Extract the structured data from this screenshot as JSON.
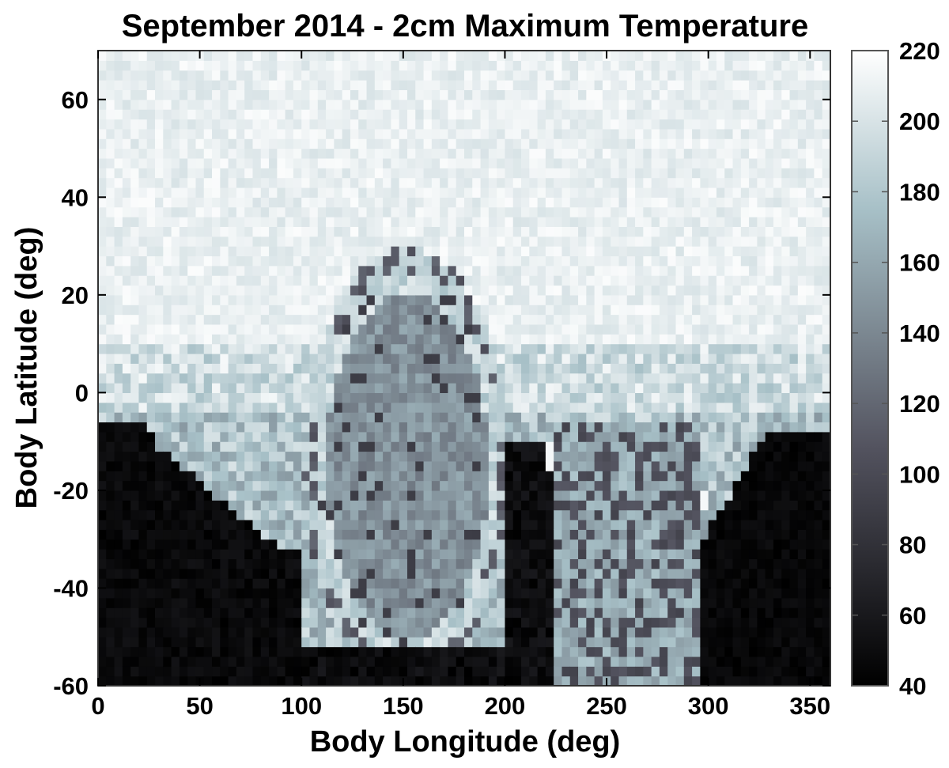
{
  "chart_data": {
    "type": "heatmap",
    "title": "September 2014 - 2cm Maximum Temperature",
    "xlabel": "Body Longitude (deg)",
    "ylabel": "Body Latitude (deg)",
    "xlim": [
      0,
      360
    ],
    "ylim": [
      -60,
      70
    ],
    "xticks": [
      0,
      50,
      100,
      150,
      200,
      250,
      300,
      350
    ],
    "yticks": [
      -60,
      -40,
      -20,
      0,
      20,
      40,
      60
    ],
    "colorbar": {
      "range": [
        40,
        220
      ],
      "ticks": [
        40,
        60,
        80,
        100,
        120,
        140,
        160,
        180,
        200,
        220
      ],
      "colormap": "bone",
      "low_color": "#000000",
      "high_color": "#ffffff"
    },
    "grid": false,
    "field_summary": {
      "approx_regions": [
        {
          "region": "northern latitudes (> ~10 deg), all longitudes",
          "value_range": [
            195,
            220
          ]
        },
        {
          "region": "central depression, lon ~110-195, lat ~-50 to 25",
          "value_range": [
            120,
            170
          ]
        },
        {
          "region": "shadowed south, lat < ~-10, lon 0-100 and 300-360",
          "value_range": [
            40,
            60
          ]
        },
        {
          "region": "southern trough, lon ~195-225, lat < ~-10",
          "value_range": [
            40,
            70
          ]
        }
      ]
    }
  }
}
